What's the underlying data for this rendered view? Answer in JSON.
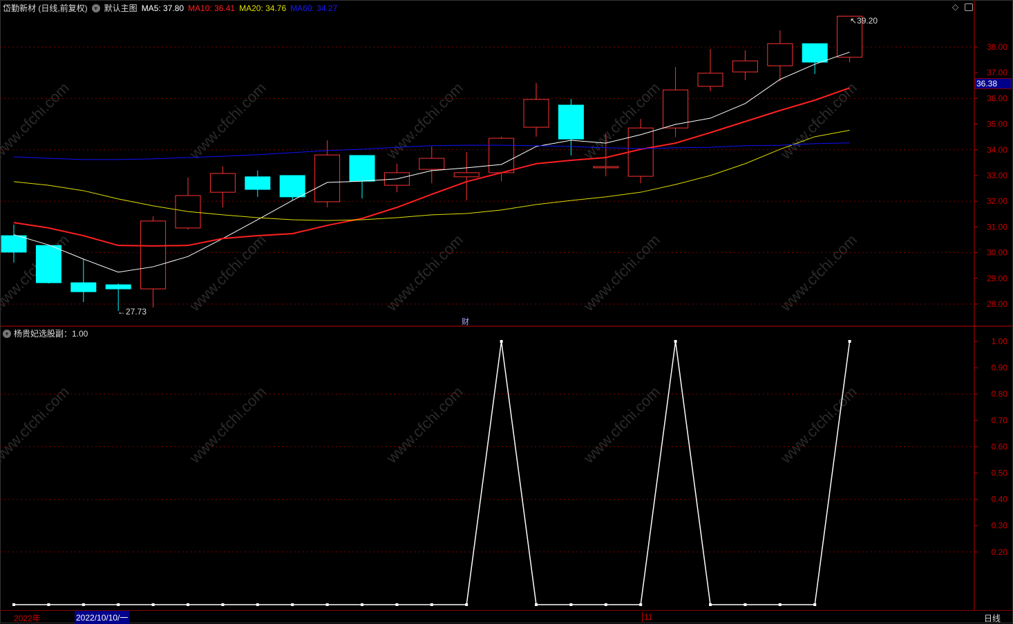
{
  "header": {
    "stock": "岱勤新材 (日线,前复权)",
    "template": "默认主图",
    "ma5": "MA5: 37.80",
    "ma10": "MA10: 36.41",
    "ma20": "MA20: 34.76",
    "ma60": "MA60: 34.27"
  },
  "colors": {
    "up": "#ff3232",
    "down": "#00ffff",
    "ma5": "#ffffff",
    "ma10": "#ff2020",
    "ma20": "#e0e000",
    "ma60": "#1010ff",
    "axis": "#c00000",
    "grid": "#800000"
  },
  "indicator": {
    "label": "杨贵妃选股副：1.00"
  },
  "markers": {
    "high": "39.20",
    "low": "27.73",
    "fin": "财",
    "current_price": "36.38"
  },
  "bottom": {
    "year": "2022年",
    "cursor_date": "2022/10/10/一",
    "month": "11",
    "period": "日线"
  },
  "icons": {
    "top_right": [
      "diamond-icon",
      "panel-toggle-icon"
    ],
    "dropdown": "chevron-down-icon"
  },
  "chart_data": [
    {
      "type": "candlestick",
      "ylim": [
        27.4,
        39.6
      ],
      "yticks": [
        "38.00",
        "37.00",
        "36.00",
        "35.00",
        "34.00",
        "33.00",
        "32.00",
        "31.00",
        "30.00",
        "29.00",
        "28.00"
      ],
      "ohlc": [
        [
          30.66,
          31.09,
          29.61,
          30.02
        ],
        [
          30.28,
          30.3,
          28.8,
          28.83
        ],
        [
          28.83,
          29.75,
          28.08,
          28.48
        ],
        [
          28.75,
          28.8,
          27.73,
          28.59
        ],
        [
          28.59,
          31.41,
          27.87,
          31.23
        ],
        [
          30.96,
          32.92,
          30.9,
          32.22
        ],
        [
          32.35,
          33.35,
          31.76,
          33.08
        ],
        [
          32.95,
          33.2,
          32.17,
          32.46
        ],
        [
          33.0,
          33.0,
          32.03,
          32.17
        ],
        [
          31.98,
          34.37,
          31.76,
          33.8
        ],
        [
          33.78,
          33.78,
          32.11,
          32.78
        ],
        [
          32.62,
          33.46,
          32.35,
          33.11
        ],
        [
          33.24,
          34.13,
          32.7,
          33.67
        ],
        [
          32.95,
          33.91,
          32.03,
          33.11
        ],
        [
          33.11,
          34.51,
          32.78,
          34.45
        ],
        [
          34.88,
          36.6,
          34.51,
          35.96
        ],
        [
          35.74,
          35.98,
          33.78,
          34.42
        ],
        [
          33.3,
          34.64,
          32.97,
          33.35
        ],
        [
          32.97,
          35.2,
          32.7,
          34.85
        ],
        [
          34.85,
          37.22,
          34.5,
          36.33
        ],
        [
          36.47,
          37.92,
          36.28,
          36.98
        ],
        [
          37.03,
          37.87,
          36.71,
          37.46
        ],
        [
          37.27,
          38.65,
          36.66,
          38.13
        ],
        [
          38.13,
          38.13,
          36.95,
          37.41
        ],
        [
          37.6,
          39.2,
          37.4,
          39.2
        ]
      ],
      "ma5": [
        30.7,
        30.3,
        29.75,
        29.24,
        29.45,
        29.85,
        30.55,
        31.28,
        32.03,
        32.73,
        32.78,
        32.87,
        33.19,
        33.3,
        33.43,
        34.13,
        34.37,
        34.26,
        34.59,
        34.99,
        35.23,
        35.8,
        36.74,
        37.33,
        37.8
      ],
      "ma10": [
        31.17,
        30.96,
        30.66,
        30.28,
        30.26,
        30.28,
        30.55,
        30.66,
        30.74,
        31.06,
        31.33,
        31.76,
        32.27,
        32.76,
        33.11,
        33.46,
        33.59,
        33.7,
        34.02,
        34.26,
        34.67,
        35.1,
        35.53,
        35.93,
        36.41
      ],
      "ma20": [
        32.76,
        32.62,
        32.41,
        32.09,
        31.82,
        31.6,
        31.47,
        31.36,
        31.28,
        31.25,
        31.28,
        31.36,
        31.47,
        31.52,
        31.66,
        31.87,
        32.03,
        32.17,
        32.35,
        32.65,
        33.0,
        33.46,
        34.02,
        34.51,
        34.76
      ],
      "ma60": [
        33.73,
        33.67,
        33.62,
        33.62,
        33.65,
        33.7,
        33.75,
        33.81,
        33.89,
        33.97,
        34.02,
        34.1,
        34.16,
        34.18,
        34.18,
        34.16,
        34.13,
        34.08,
        34.05,
        34.08,
        34.1,
        34.16,
        34.18,
        34.24,
        34.27
      ]
    },
    {
      "type": "line",
      "ylim": [
        0,
        1.05
      ],
      "yticks": [
        "1.00",
        "0.90",
        "0.80",
        "0.70",
        "0.60",
        "0.50",
        "0.40",
        "0.30",
        "0.20"
      ],
      "values": [
        0,
        0,
        0,
        0,
        0,
        0,
        0,
        0,
        0,
        0,
        0,
        0,
        0,
        0,
        1,
        0,
        0,
        0,
        0,
        1,
        0,
        0,
        0,
        0,
        1
      ]
    }
  ]
}
